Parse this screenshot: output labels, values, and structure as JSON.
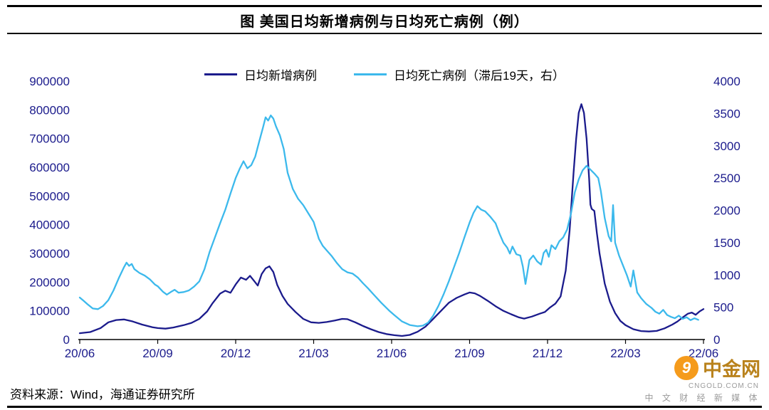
{
  "title": "图  美国日均新增病例与日均死亡病例（例）",
  "source": "资料来源：Wind，海通证券研究所",
  "watermark": {
    "brand": "中金网",
    "logo_glyph": "9",
    "domain": "CNGOLD.COM.CN",
    "tagline": "中 文 财 经 新 媒 体"
  },
  "colors": {
    "new_cases": "#1b1b8c",
    "deaths": "#3cb9ec",
    "axis_text": "#1b1b8c",
    "axis_line": "#000000",
    "watermark_orange": "#f59b1c",
    "watermark_brand": "#b9821c",
    "watermark_gray": "#9b9b9b"
  },
  "chart_data": {
    "type": "line",
    "title": "图  美国日均新增病例与日均死亡病例（例）",
    "grid": false,
    "legend_position": "top-center",
    "x_range": [
      0,
      24
    ],
    "x_tick_positions": [
      0,
      3,
      6,
      9,
      12,
      15,
      18,
      21,
      24
    ],
    "x_tick_labels": [
      "20/06",
      "20/09",
      "20/12",
      "21/03",
      "21/06",
      "21/09",
      "21/12",
      "22/03",
      "22/06"
    ],
    "left_axis": {
      "min": 0,
      "max": 900000,
      "ticks": [
        900000,
        800000,
        700000,
        600000,
        500000,
        400000,
        300000,
        200000,
        100000,
        0
      ]
    },
    "right_axis": {
      "min": 0,
      "max": 4000,
      "ticks": [
        4000,
        3500,
        3000,
        2500,
        2000,
        1500,
        1000,
        500,
        0
      ]
    },
    "series": [
      {
        "name": "日均新增病例",
        "axis": "left",
        "color": "#1b1b8c",
        "points": [
          [
            0,
            22000
          ],
          [
            0.4,
            26000
          ],
          [
            0.8,
            40000
          ],
          [
            1.1,
            60000
          ],
          [
            1.4,
            68000
          ],
          [
            1.7,
            70000
          ],
          [
            2,
            64000
          ],
          [
            2.4,
            52000
          ],
          [
            2.8,
            43000
          ],
          [
            3,
            40000
          ],
          [
            3.3,
            38000
          ],
          [
            3.6,
            42000
          ],
          [
            4,
            50000
          ],
          [
            4.3,
            58000
          ],
          [
            4.6,
            72000
          ],
          [
            4.9,
            98000
          ],
          [
            5.1,
            125000
          ],
          [
            5.4,
            160000
          ],
          [
            5.6,
            170000
          ],
          [
            5.8,
            163000
          ],
          [
            6,
            192000
          ],
          [
            6.2,
            216000
          ],
          [
            6.4,
            208000
          ],
          [
            6.55,
            222000
          ],
          [
            6.7,
            205000
          ],
          [
            6.85,
            188000
          ],
          [
            7,
            228000
          ],
          [
            7.15,
            248000
          ],
          [
            7.3,
            255000
          ],
          [
            7.45,
            235000
          ],
          [
            7.6,
            190000
          ],
          [
            7.8,
            152000
          ],
          [
            8,
            124000
          ],
          [
            8.3,
            96000
          ],
          [
            8.6,
            72000
          ],
          [
            8.9,
            60000
          ],
          [
            9.2,
            58000
          ],
          [
            9.5,
            61000
          ],
          [
            9.8,
            66000
          ],
          [
            10.1,
            72000
          ],
          [
            10.3,
            71000
          ],
          [
            10.6,
            60000
          ],
          [
            10.9,
            47000
          ],
          [
            11.2,
            36000
          ],
          [
            11.5,
            26000
          ],
          [
            11.8,
            19000
          ],
          [
            12.1,
            15000
          ],
          [
            12.4,
            12500
          ],
          [
            12.7,
            16000
          ],
          [
            13,
            27000
          ],
          [
            13.3,
            45000
          ],
          [
            13.6,
            72000
          ],
          [
            13.9,
            100000
          ],
          [
            14.2,
            128000
          ],
          [
            14.5,
            145000
          ],
          [
            14.8,
            157000
          ],
          [
            15,
            164000
          ],
          [
            15.2,
            161000
          ],
          [
            15.4,
            152000
          ],
          [
            15.7,
            135000
          ],
          [
            16,
            116000
          ],
          [
            16.3,
            100000
          ],
          [
            16.6,
            88000
          ],
          [
            16.9,
            77000
          ],
          [
            17.1,
            73000
          ],
          [
            17.4,
            80000
          ],
          [
            17.7,
            90000
          ],
          [
            17.9,
            96000
          ],
          [
            18.1,
            112000
          ],
          [
            18.3,
            125000
          ],
          [
            18.5,
            150000
          ],
          [
            18.7,
            240000
          ],
          [
            18.85,
            380000
          ],
          [
            19,
            580000
          ],
          [
            19.1,
            700000
          ],
          [
            19.2,
            790000
          ],
          [
            19.3,
            820000
          ],
          [
            19.4,
            790000
          ],
          [
            19.5,
            700000
          ],
          [
            19.6,
            560000
          ],
          [
            19.65,
            470000
          ],
          [
            19.7,
            455000
          ],
          [
            19.8,
            448000
          ],
          [
            19.9,
            370000
          ],
          [
            20,
            300000
          ],
          [
            20.2,
            195000
          ],
          [
            20.4,
            132000
          ],
          [
            20.6,
            92000
          ],
          [
            20.8,
            65000
          ],
          [
            21,
            50000
          ],
          [
            21.3,
            36000
          ],
          [
            21.6,
            29500
          ],
          [
            21.9,
            28000
          ],
          [
            22.2,
            30000
          ],
          [
            22.5,
            39000
          ],
          [
            22.8,
            52000
          ],
          [
            23,
            63000
          ],
          [
            23.2,
            77000
          ],
          [
            23.4,
            90000
          ],
          [
            23.55,
            94000
          ],
          [
            23.7,
            86000
          ],
          [
            23.85,
            98000
          ],
          [
            24,
            106000
          ]
        ]
      },
      {
        "name": "日均死亡病例（滞后19天，右）",
        "axis": "right",
        "color": "#3cb9ec",
        "points": [
          [
            0,
            650
          ],
          [
            0.15,
            600
          ],
          [
            0.3,
            545
          ],
          [
            0.5,
            480
          ],
          [
            0.7,
            470
          ],
          [
            0.9,
            520
          ],
          [
            1.1,
            610
          ],
          [
            1.3,
            760
          ],
          [
            1.5,
            950
          ],
          [
            1.7,
            1120
          ],
          [
            1.8,
            1190
          ],
          [
            1.9,
            1140
          ],
          [
            2,
            1170
          ],
          [
            2.1,
            1090
          ],
          [
            2.3,
            1030
          ],
          [
            2.5,
            990
          ],
          [
            2.7,
            930
          ],
          [
            2.9,
            850
          ],
          [
            3,
            825
          ],
          [
            3.2,
            740
          ],
          [
            3.35,
            695
          ],
          [
            3.5,
            735
          ],
          [
            3.65,
            770
          ],
          [
            3.8,
            725
          ],
          [
            4,
            735
          ],
          [
            4.2,
            760
          ],
          [
            4.4,
            820
          ],
          [
            4.6,
            900
          ],
          [
            4.8,
            1090
          ],
          [
            5,
            1360
          ],
          [
            5.2,
            1580
          ],
          [
            5.4,
            1800
          ],
          [
            5.6,
            2010
          ],
          [
            5.8,
            2260
          ],
          [
            6,
            2500
          ],
          [
            6.15,
            2640
          ],
          [
            6.3,
            2760
          ],
          [
            6.45,
            2650
          ],
          [
            6.6,
            2700
          ],
          [
            6.75,
            2830
          ],
          [
            6.9,
            3060
          ],
          [
            7.05,
            3280
          ],
          [
            7.15,
            3440
          ],
          [
            7.25,
            3390
          ],
          [
            7.35,
            3470
          ],
          [
            7.45,
            3420
          ],
          [
            7.55,
            3300
          ],
          [
            7.7,
            3160
          ],
          [
            7.85,
            2950
          ],
          [
            8,
            2580
          ],
          [
            8.2,
            2330
          ],
          [
            8.4,
            2180
          ],
          [
            8.6,
            2080
          ],
          [
            8.8,
            1950
          ],
          [
            9,
            1820
          ],
          [
            9.2,
            1560
          ],
          [
            9.35,
            1450
          ],
          [
            9.5,
            1380
          ],
          [
            9.7,
            1290
          ],
          [
            9.9,
            1180
          ],
          [
            10.1,
            1090
          ],
          [
            10.3,
            1040
          ],
          [
            10.5,
            1020
          ],
          [
            10.7,
            960
          ],
          [
            10.9,
            870
          ],
          [
            11.1,
            790
          ],
          [
            11.3,
            700
          ],
          [
            11.6,
            570
          ],
          [
            11.9,
            450
          ],
          [
            12.1,
            380
          ],
          [
            12.4,
            280
          ],
          [
            12.7,
            225
          ],
          [
            13,
            205
          ],
          [
            13.2,
            215
          ],
          [
            13.4,
            260
          ],
          [
            13.6,
            370
          ],
          [
            13.8,
            520
          ],
          [
            14,
            700
          ],
          [
            14.2,
            900
          ],
          [
            14.4,
            1120
          ],
          [
            14.6,
            1340
          ],
          [
            14.8,
            1580
          ],
          [
            15,
            1810
          ],
          [
            15.15,
            1960
          ],
          [
            15.3,
            2065
          ],
          [
            15.45,
            2010
          ],
          [
            15.6,
            1985
          ],
          [
            15.8,
            1900
          ],
          [
            16,
            1800
          ],
          [
            16.15,
            1640
          ],
          [
            16.3,
            1500
          ],
          [
            16.45,
            1420
          ],
          [
            16.55,
            1330
          ],
          [
            16.65,
            1440
          ],
          [
            16.8,
            1320
          ],
          [
            16.95,
            1300
          ],
          [
            17.05,
            1130
          ],
          [
            17.15,
            860
          ],
          [
            17.3,
            1230
          ],
          [
            17.45,
            1300
          ],
          [
            17.6,
            1210
          ],
          [
            17.75,
            1160
          ],
          [
            17.85,
            1340
          ],
          [
            17.95,
            1390
          ],
          [
            18.05,
            1280
          ],
          [
            18.15,
            1460
          ],
          [
            18.3,
            1400
          ],
          [
            18.45,
            1520
          ],
          [
            18.6,
            1580
          ],
          [
            18.75,
            1700
          ],
          [
            18.9,
            1950
          ],
          [
            19.05,
            2280
          ],
          [
            19.2,
            2480
          ],
          [
            19.35,
            2620
          ],
          [
            19.5,
            2690
          ],
          [
            19.65,
            2630
          ],
          [
            19.8,
            2570
          ],
          [
            19.95,
            2500
          ],
          [
            20.05,
            2300
          ],
          [
            20.2,
            1880
          ],
          [
            20.35,
            1600
          ],
          [
            20.45,
            1520
          ],
          [
            20.52,
            2080
          ],
          [
            20.6,
            1500
          ],
          [
            20.75,
            1300
          ],
          [
            20.9,
            1150
          ],
          [
            21.05,
            1000
          ],
          [
            21.2,
            820
          ],
          [
            21.3,
            1070
          ],
          [
            21.45,
            730
          ],
          [
            21.6,
            640
          ],
          [
            21.8,
            550
          ],
          [
            22,
            490
          ],
          [
            22.15,
            430
          ],
          [
            22.3,
            400
          ],
          [
            22.45,
            460
          ],
          [
            22.6,
            380
          ],
          [
            22.75,
            350
          ],
          [
            22.9,
            330
          ],
          [
            23.05,
            370
          ],
          [
            23.2,
            320
          ],
          [
            23.35,
            345
          ],
          [
            23.5,
            300
          ],
          [
            23.65,
            330
          ],
          [
            23.8,
            305
          ]
        ]
      }
    ]
  }
}
